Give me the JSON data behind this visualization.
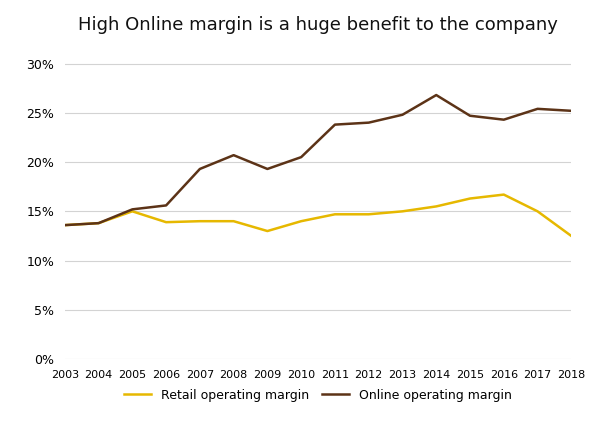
{
  "title": "High Online margin is a huge benefit to the company",
  "years": [
    2003,
    2004,
    2005,
    2006,
    2007,
    2008,
    2009,
    2010,
    2011,
    2012,
    2013,
    2014,
    2015,
    2016,
    2017,
    2018
  ],
  "retail_margin": [
    0.136,
    0.138,
    0.15,
    0.139,
    0.14,
    0.14,
    0.13,
    0.14,
    0.147,
    0.147,
    0.15,
    0.155,
    0.163,
    0.167,
    0.15,
    0.125
  ],
  "online_margin": [
    0.136,
    0.138,
    0.152,
    0.156,
    0.193,
    0.207,
    0.193,
    0.205,
    0.238,
    0.24,
    0.248,
    0.268,
    0.247,
    0.243,
    0.254,
    0.252
  ],
  "retail_color": "#E6B800",
  "online_color": "#5C3317",
  "retail_label": "Retail operating margin",
  "online_label": "Online operating margin",
  "ylim": [
    0,
    0.32
  ],
  "yticks": [
    0,
    0.05,
    0.1,
    0.15,
    0.2,
    0.25,
    0.3
  ],
  "background_color": "#ffffff",
  "grid_color": "#d3d3d3",
  "title_fontsize": 13,
  "linewidth": 1.8
}
